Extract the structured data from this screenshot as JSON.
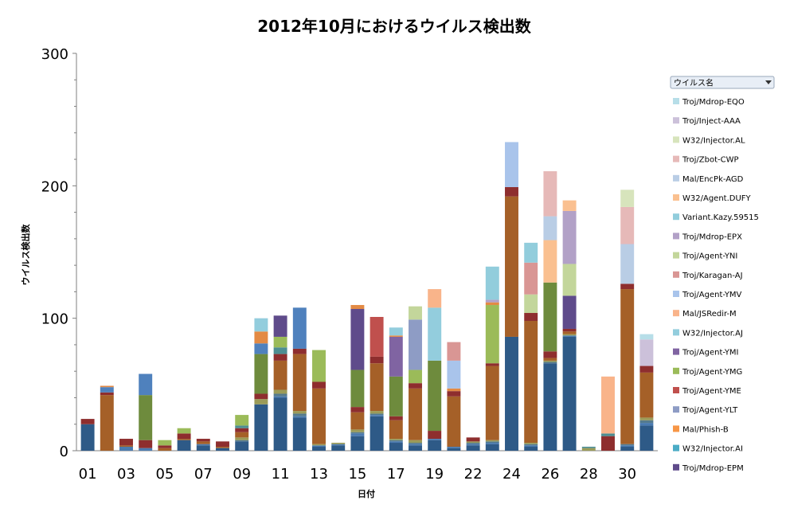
{
  "chart_data": {
    "type": "bar",
    "stacked": true,
    "title": "2012年10月におけるウイルス検出数",
    "xlabel": "日付",
    "ylabel": "ウイルス検出数",
    "ylim": [
      0,
      300
    ],
    "yticks": [
      0,
      100,
      200,
      300
    ],
    "grid": false,
    "categories": [
      "01",
      "02",
      "03",
      "04",
      "05",
      "06",
      "07",
      "08",
      "09",
      "10",
      "11",
      "12",
      "13",
      "14",
      "15",
      "16",
      "17",
      "18",
      "19",
      "20",
      "22",
      "23",
      "24",
      "25",
      "26",
      "27",
      "28",
      "29",
      "30",
      "31"
    ],
    "xtick_labels": [
      "01",
      "",
      "03",
      "",
      "05",
      "",
      "07",
      "",
      "09",
      "",
      "11",
      "",
      "13",
      "",
      "15",
      "",
      "17",
      "",
      "19",
      "",
      "22",
      "",
      "24",
      "",
      "26",
      "",
      "28",
      "",
      "30",
      ""
    ],
    "legend": {
      "title": "ウイルス名",
      "placement": "right",
      "order": [
        "Troj/Mdrop-EQO",
        "Troj/Inject-AAA",
        "W32/Injector.AL",
        "Troj/Zbot-CWP",
        "Mal/EncPk-AGD",
        "W32/Agent.DUFY",
        "Variant.Kazy.59515",
        "Troj/Mdrop-EPX",
        "Troj/Agent-YNI",
        "Troj/Karagan-AJ",
        "Troj/Agent-YMV",
        "Mal/JSRedir-M",
        "W32/Injector.AJ",
        "Troj/Agent-YMI",
        "Troj/Agent-YMG",
        "Troj/Agent-YME",
        "Troj/Agent-YLT",
        "Mal/Phish-B",
        "W32/Injector.AI",
        "Troj/Mdrop-EPM"
      ]
    },
    "series": [
      {
        "name": "",
        "color": "#2E5A87",
        "values": [
          20,
          0,
          0,
          0,
          0,
          8,
          4,
          2,
          7,
          35,
          40,
          25,
          3,
          4,
          11,
          26,
          6,
          4,
          8,
          2,
          4,
          5,
          86,
          3,
          66,
          86,
          0,
          0,
          3,
          19
        ]
      },
      {
        "name": "",
        "color": "#4A7AB0",
        "values": [
          0,
          0,
          3,
          2,
          0,
          0,
          1,
          0,
          0,
          0,
          1,
          1,
          1,
          1,
          2,
          1,
          1,
          1,
          1,
          1,
          1,
          1,
          0,
          1,
          0,
          1,
          0,
          0,
          1,
          2
        ]
      },
      {
        "name": "",
        "color": "#547A8E",
        "values": [
          0,
          0,
          0,
          0,
          0,
          0,
          0,
          0,
          1,
          0,
          2,
          2,
          0,
          0,
          1,
          1,
          1,
          1,
          0,
          0,
          1,
          1,
          0,
          1,
          1,
          0,
          0,
          0,
          1,
          2
        ]
      },
      {
        "name": "",
        "color": "#9B9B58",
        "values": [
          0,
          0,
          0,
          0,
          0,
          0,
          0,
          0,
          2,
          4,
          3,
          2,
          1,
          1,
          2,
          2,
          1,
          2,
          0,
          0,
          1,
          1,
          0,
          1,
          1,
          1,
          2,
          0,
          0,
          2
        ]
      },
      {
        "name": "",
        "color": "#A56028",
        "values": [
          0,
          42,
          1,
          0,
          2,
          1,
          2,
          1,
          4,
          0,
          22,
          43,
          42,
          0,
          13,
          36,
          14,
          39,
          0,
          38,
          0,
          56,
          106,
          92,
          2,
          2,
          0,
          0,
          117,
          34
        ]
      },
      {
        "name": "",
        "color": "#8E2E2E",
        "values": [
          4,
          2,
          5,
          6,
          2,
          4,
          2,
          4,
          3,
          4,
          5,
          4,
          5,
          0,
          4,
          5,
          3,
          4,
          6,
          4,
          3,
          2,
          7,
          6,
          5,
          2,
          0,
          11,
          4,
          5
        ]
      },
      {
        "name": "",
        "color": "#4E8E92",
        "values": [
          0,
          0,
          0,
          0,
          0,
          0,
          0,
          0,
          2,
          0,
          5,
          0,
          0,
          0,
          0,
          0,
          0,
          0,
          0,
          0,
          0,
          0,
          0,
          0,
          0,
          0,
          1,
          2,
          0,
          0
        ]
      },
      {
        "name": "",
        "color": "#6E8B3D",
        "values": [
          0,
          0,
          0,
          34,
          0,
          0,
          0,
          0,
          0,
          30,
          0,
          0,
          0,
          0,
          28,
          0,
          30,
          0,
          53,
          0,
          0,
          0,
          0,
          0,
          52,
          0,
          0,
          0,
          0,
          0
        ]
      },
      {
        "name": "",
        "color": "#9BBB59",
        "values": [
          0,
          0,
          0,
          0,
          4,
          4,
          0,
          0,
          8,
          0,
          8,
          0,
          24,
          0,
          0,
          0,
          0,
          10,
          0,
          0,
          0,
          44,
          0,
          0,
          0,
          0,
          0,
          0,
          0,
          0
        ]
      },
      {
        "name": "",
        "color": "#5F4B8B",
        "values": [
          0,
          0,
          0,
          0,
          0,
          0,
          0,
          0,
          0,
          0,
          16,
          0,
          0,
          0,
          46,
          0,
          0,
          0,
          0,
          0,
          0,
          0,
          0,
          0,
          0,
          25,
          0,
          0,
          0,
          0
        ]
      },
      {
        "name": "",
        "color": "#C0504D",
        "values": [
          0,
          0,
          0,
          0,
          0,
          0,
          0,
          0,
          0,
          0,
          0,
          0,
          0,
          0,
          0,
          30,
          0,
          0,
          0,
          0,
          0,
          0,
          0,
          0,
          0,
          0,
          0,
          0,
          0,
          0
        ]
      },
      {
        "name": "",
        "color": "#8064A2",
        "values": [
          0,
          0,
          0,
          0,
          0,
          0,
          0,
          0,
          0,
          0,
          0,
          0,
          0,
          0,
          0,
          0,
          30,
          0,
          0,
          0,
          0,
          0,
          0,
          0,
          0,
          0,
          0,
          0,
          0,
          0
        ]
      },
      {
        "name": "",
        "color": "#8E9CC5",
        "values": [
          0,
          0,
          0,
          0,
          0,
          0,
          0,
          0,
          0,
          0,
          0,
          0,
          0,
          0,
          0,
          0,
          0,
          38,
          0,
          0,
          0,
          0,
          0,
          0,
          0,
          0,
          0,
          0,
          0,
          0
        ]
      },
      {
        "name": "",
        "color": "#4F81BD",
        "values": [
          0,
          4,
          0,
          16,
          0,
          0,
          0,
          0,
          0,
          8,
          0,
          31,
          0,
          0,
          0,
          0,
          0,
          0,
          0,
          0,
          0,
          0,
          0,
          0,
          0,
          0,
          0,
          0,
          0,
          0
        ]
      },
      {
        "name": "",
        "color": "#E38A44",
        "values": [
          0,
          1,
          0,
          0,
          0,
          0,
          0,
          0,
          0,
          9,
          0,
          0,
          0,
          0,
          3,
          0,
          1,
          0,
          0,
          2,
          0,
          2,
          0,
          0,
          0,
          0,
          0,
          0,
          0,
          0
        ]
      },
      {
        "name": "",
        "color": "#93CDDD",
        "values": [
          0,
          0,
          0,
          0,
          0,
          0,
          0,
          0,
          0,
          10,
          0,
          0,
          0,
          0,
          0,
          0,
          6,
          0,
          40,
          0,
          0,
          0,
          0,
          0,
          0,
          0,
          0,
          0,
          0,
          0
        ]
      },
      {
        "name": "",
        "color": "#F9B48A",
        "values": [
          0,
          0,
          0,
          0,
          0,
          0,
          0,
          0,
          0,
          0,
          0,
          0,
          0,
          0,
          0,
          0,
          0,
          0,
          14,
          0,
          0,
          0,
          0,
          0,
          0,
          0,
          0,
          43,
          0,
          0
        ]
      },
      {
        "name": "",
        "color": "#C3D69B",
        "values": [
          0,
          0,
          0,
          0,
          0,
          0,
          0,
          0,
          0,
          0,
          0,
          0,
          0,
          0,
          0,
          0,
          0,
          10,
          0,
          0,
          0,
          0,
          0,
          14,
          0,
          24,
          0,
          0,
          0,
          0
        ]
      },
      {
        "name": "",
        "color": "#A9C4EB",
        "values": [
          0,
          0,
          0,
          0,
          0,
          0,
          0,
          0,
          0,
          0,
          0,
          0,
          0,
          0,
          0,
          0,
          0,
          0,
          0,
          21,
          0,
          0,
          34,
          0,
          0,
          0,
          0,
          0,
          0,
          0
        ]
      },
      {
        "name": "",
        "color": "#D99694",
        "values": [
          0,
          0,
          0,
          0,
          0,
          0,
          0,
          0,
          0,
          0,
          0,
          0,
          0,
          0,
          0,
          0,
          0,
          0,
          0,
          14,
          0,
          0,
          0,
          24,
          0,
          0,
          0,
          0,
          0,
          0
        ]
      },
      {
        "name": "",
        "color": "#B2A1C7",
        "values": [
          0,
          0,
          0,
          0,
          0,
          0,
          0,
          0,
          0,
          0,
          0,
          0,
          0,
          0,
          0,
          0,
          0,
          0,
          0,
          0,
          0,
          2,
          0,
          0,
          0,
          40,
          0,
          0,
          0,
          0
        ]
      },
      {
        "name": "",
        "color": "#92CDDC",
        "values": [
          0,
          0,
          0,
          0,
          0,
          0,
          0,
          0,
          0,
          0,
          0,
          0,
          0,
          0,
          0,
          0,
          0,
          0,
          0,
          0,
          0,
          25,
          0,
          15,
          0,
          0,
          0,
          0,
          0,
          0
        ]
      },
      {
        "name": "",
        "color": "#FAC090",
        "values": [
          0,
          0,
          0,
          0,
          0,
          0,
          0,
          0,
          0,
          0,
          0,
          0,
          0,
          0,
          0,
          0,
          0,
          0,
          0,
          0,
          0,
          0,
          0,
          0,
          32,
          8,
          0,
          0,
          0,
          0
        ]
      },
      {
        "name": "",
        "color": "#B9CDE5",
        "values": [
          0,
          0,
          0,
          0,
          0,
          0,
          0,
          0,
          0,
          0,
          0,
          0,
          0,
          0,
          0,
          0,
          0,
          0,
          0,
          0,
          0,
          0,
          0,
          0,
          18,
          0,
          0,
          0,
          30,
          0
        ]
      },
      {
        "name": "",
        "color": "#E6B9B8",
        "values": [
          0,
          0,
          0,
          0,
          0,
          0,
          0,
          0,
          0,
          0,
          0,
          0,
          0,
          0,
          0,
          0,
          0,
          0,
          0,
          0,
          0,
          0,
          0,
          0,
          34,
          0,
          0,
          0,
          28,
          0
        ]
      },
      {
        "name": "",
        "color": "#D7E4BC",
        "values": [
          0,
          0,
          0,
          0,
          0,
          0,
          0,
          0,
          0,
          0,
          0,
          0,
          0,
          0,
          0,
          0,
          0,
          0,
          0,
          0,
          0,
          0,
          0,
          0,
          0,
          0,
          0,
          0,
          13,
          0
        ]
      },
      {
        "name": "",
        "color": "#CCC1DA",
        "values": [
          0,
          0,
          0,
          0,
          0,
          0,
          0,
          0,
          0,
          0,
          0,
          0,
          0,
          0,
          0,
          0,
          0,
          0,
          0,
          0,
          0,
          0,
          0,
          0,
          0,
          0,
          0,
          0,
          0,
          20
        ]
      },
      {
        "name": "",
        "color": "#B7DEE8",
        "values": [
          0,
          0,
          0,
          0,
          0,
          0,
          0,
          0,
          0,
          0,
          0,
          0,
          0,
          0,
          0,
          0,
          0,
          0,
          0,
          0,
          0,
          0,
          0,
          0,
          0,
          0,
          0,
          0,
          0,
          4
        ]
      }
    ]
  },
  "legend_items": [
    {
      "label": "Troj/Mdrop-EQO",
      "color": "#B7DEE8"
    },
    {
      "label": "Troj/Inject-AAA",
      "color": "#CCC1DA"
    },
    {
      "label": "W32/Injector.AL",
      "color": "#D7E4BC"
    },
    {
      "label": "Troj/Zbot-CWP",
      "color": "#E6B9B8"
    },
    {
      "label": "Mal/EncPk-AGD",
      "color": "#B9CDE5"
    },
    {
      "label": "W32/Agent.DUFY",
      "color": "#FAC090"
    },
    {
      "label": "Variant.Kazy.59515",
      "color": "#92CDDC"
    },
    {
      "label": "Troj/Mdrop-EPX",
      "color": "#B2A1C7"
    },
    {
      "label": "Troj/Agent-YNI",
      "color": "#C3D69B"
    },
    {
      "label": "Troj/Karagan-AJ",
      "color": "#D99694"
    },
    {
      "label": "Troj/Agent-YMV",
      "color": "#A9C4EB"
    },
    {
      "label": "Mal/JSRedir-M",
      "color": "#F9B48A"
    },
    {
      "label": "W32/Injector.AJ",
      "color": "#93CDDD"
    },
    {
      "label": "Troj/Agent-YMI",
      "color": "#8064A2"
    },
    {
      "label": "Troj/Agent-YMG",
      "color": "#9BBB59"
    },
    {
      "label": "Troj/Agent-YME",
      "color": "#C0504D"
    },
    {
      "label": "Troj/Agent-YLT",
      "color": "#8E9CC5"
    },
    {
      "label": "Mal/Phish-B",
      "color": "#F79646"
    },
    {
      "label": "W32/Injector.AI",
      "color": "#4BACC6"
    },
    {
      "label": "Troj/Mdrop-EPM",
      "color": "#5F4B8B"
    }
  ],
  "legend_header": {
    "label": "ウイルス名",
    "dropdown_icon": "chevron-down-icon"
  }
}
